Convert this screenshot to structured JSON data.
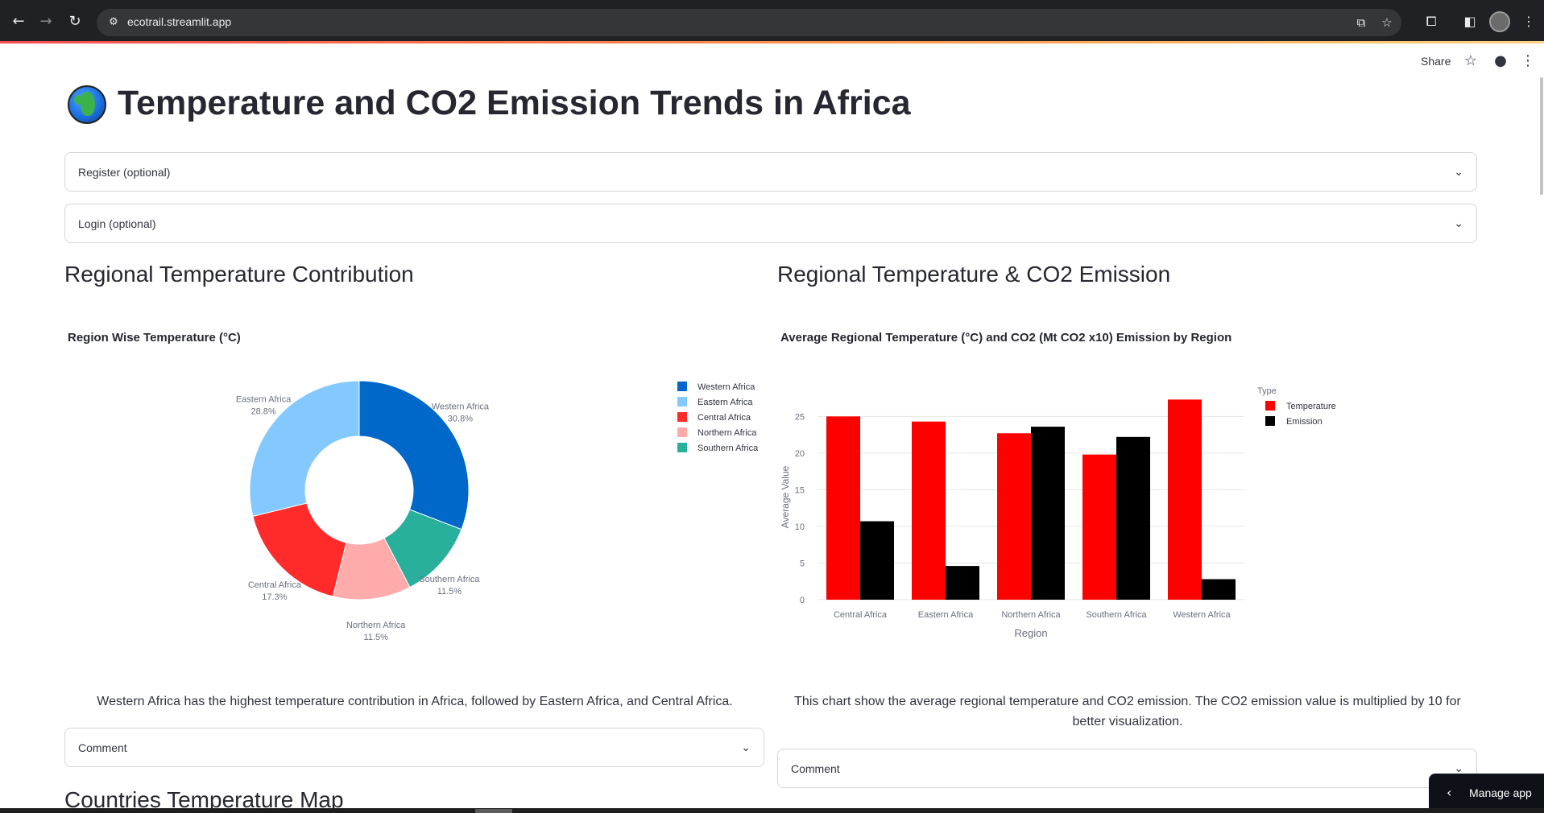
{
  "browser": {
    "url": "ecotrail.streamlit.app",
    "back_icon": "arrow-left-icon",
    "forward_icon": "arrow-right-icon",
    "reload_icon": "reload-icon"
  },
  "header": {
    "share_label": "Share",
    "star_icon": "star-icon",
    "github_icon": "github-icon",
    "menu_icon": "more-vertical-icon"
  },
  "title": "Temperature and CO2 Emission Trends in Africa",
  "expanders": {
    "register": "Register (optional)",
    "login": "Login (optional)"
  },
  "left": {
    "section_title": "Regional Temperature Contribution",
    "caption": "Western Africa has the highest temperature contribution in Africa, followed by Eastern Africa, and Central Africa.",
    "comment_label": "Comment"
  },
  "right": {
    "section_title": "Regional Temperature & CO2 Emission",
    "caption": "This chart show the average regional temperature and CO2 emission. The CO2 emission value is multiplied by 10 for better visualization.",
    "comment_label": "Comment"
  },
  "next_section_title": "Countries Temperature Map",
  "manage_app_label": "Manage app",
  "colors": {
    "western": "#0068c9",
    "eastern": "#83c9ff",
    "central": "#ff2b2b",
    "northern": "#ffabab",
    "southern": "#29b09d",
    "temperature": "#ff0000",
    "emission": "#000000"
  },
  "chart_data": [
    {
      "type": "pie",
      "hole": true,
      "title": "Region Wise Temperature (°C)",
      "labels": [
        "Western Africa",
        "Eastern Africa",
        "Central Africa",
        "Northern Africa",
        "Southern Africa"
      ],
      "values": [
        30.8,
        28.8,
        17.3,
        11.5,
        11.5
      ],
      "percent_labels": [
        "30.8%",
        "28.8%",
        "17.3%",
        "11.5%",
        "11.5%"
      ],
      "legend": [
        "Western Africa",
        "Eastern Africa",
        "Central Africa",
        "Northern Africa",
        "Southern Africa"
      ],
      "legend_position": "right"
    },
    {
      "type": "bar",
      "title": "Average Regional Temperature (°C) and CO2 (Mt CO2 x10) Emission by Region",
      "categories": [
        "Central Africa",
        "Eastern Africa",
        "Northern Africa",
        "Southern Africa",
        "Western Africa"
      ],
      "series": [
        {
          "name": "Temperature",
          "values": [
            25.0,
            24.3,
            22.7,
            19.8,
            27.3
          ]
        },
        {
          "name": "Emission",
          "values": [
            10.7,
            4.6,
            23.6,
            22.2,
            2.8
          ]
        }
      ],
      "xlabel": "Region",
      "ylabel": "Average Value",
      "ylim": [
        0,
        28
      ],
      "yticks": [
        "0",
        "5",
        "10",
        "15",
        "20",
        "25"
      ],
      "legend_title": "Type",
      "legend_position": "top-right",
      "grid": true
    }
  ]
}
